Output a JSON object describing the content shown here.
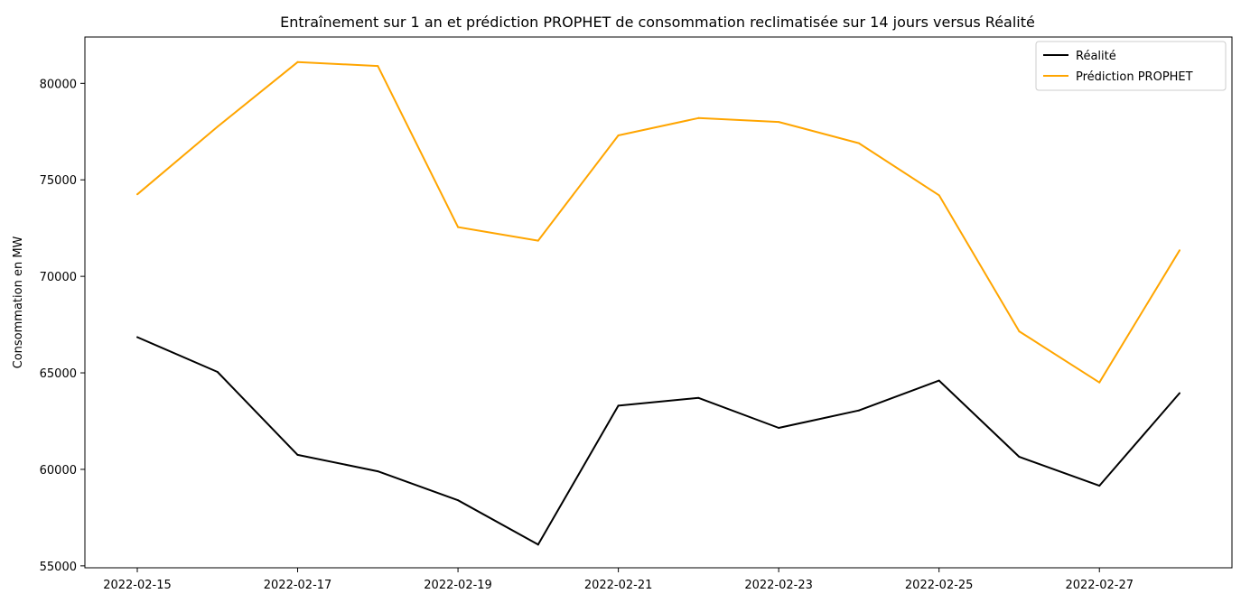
{
  "chart_data": {
    "type": "line",
    "title": "Entraînement sur 1 an et prédiction PROPHET de consommation reclimatisée sur 14 jours versus Réalité",
    "xlabel": "",
    "ylabel": "Consommation en MW",
    "x": [
      "2022-02-15",
      "2022-02-16",
      "2022-02-17",
      "2022-02-18",
      "2022-02-19",
      "2022-02-20",
      "2022-02-21",
      "2022-02-22",
      "2022-02-23",
      "2022-02-24",
      "2022-02-25",
      "2022-02-26",
      "2022-02-27",
      "2022-02-28"
    ],
    "x_ticks": [
      "2022-02-15",
      "2022-02-17",
      "2022-02-19",
      "2022-02-21",
      "2022-02-23",
      "2022-02-25",
      "2022-02-27"
    ],
    "y_ticks": [
      55000,
      60000,
      65000,
      70000,
      75000,
      80000
    ],
    "ylim": [
      54900,
      82400
    ],
    "grid": false,
    "legend_position": "top-right",
    "series": [
      {
        "name": "Réalité",
        "color": "#000000",
        "values": [
          66850,
          65050,
          60750,
          59900,
          58400,
          56100,
          63300,
          63700,
          62150,
          63050,
          64600,
          60650,
          59150,
          63950
        ]
      },
      {
        "name": "Prédiction PROPHET",
        "color": "#ffa500",
        "values": [
          74250,
          77750,
          81100,
          80900,
          72550,
          71850,
          77300,
          78200,
          78000,
          76900,
          74200,
          67150,
          64500,
          71350
        ]
      }
    ]
  }
}
